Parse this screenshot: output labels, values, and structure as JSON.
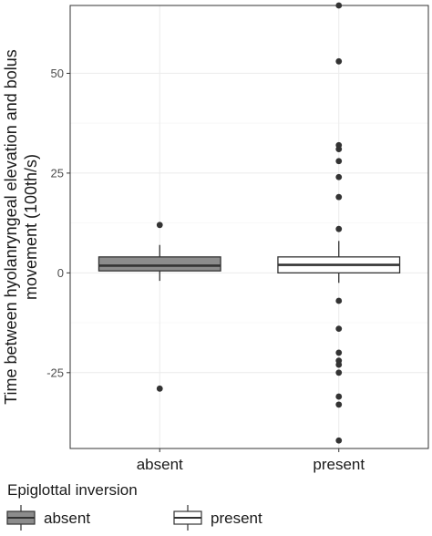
{
  "chart_data": {
    "type": "box",
    "xlabel": "",
    "ylabel_lines": [
      "Time between hyolanryngeal elevation and bolus",
      "movement (100th/s)"
    ],
    "y_ticks": [
      -25,
      0,
      25,
      50
    ],
    "ylim": [
      -44,
      67
    ],
    "categories": [
      "absent",
      "present"
    ],
    "grid": true,
    "legend": {
      "title": "Epiglottal inversion",
      "position": "bottom",
      "items": [
        {
          "label": "absent",
          "fill": "#8c8c8c"
        },
        {
          "label": "present",
          "fill": "#ffffff"
        }
      ]
    },
    "boxes": [
      {
        "category": "absent",
        "fill": "#8c8c8c",
        "whisker_low": -2,
        "q1": 0.5,
        "median": 1.8,
        "q3": 4,
        "whisker_high": 7,
        "outliers": [
          12,
          -29
        ]
      },
      {
        "category": "present",
        "fill": "#ffffff",
        "whisker_low": -2.5,
        "q1": 0,
        "median": 2,
        "q3": 4,
        "whisker_high": 8,
        "outliers": [
          67,
          53,
          32,
          31,
          28,
          24,
          19,
          11,
          -7,
          -14,
          -20,
          -22,
          -23,
          -25,
          -31,
          -33,
          -42
        ]
      }
    ]
  }
}
